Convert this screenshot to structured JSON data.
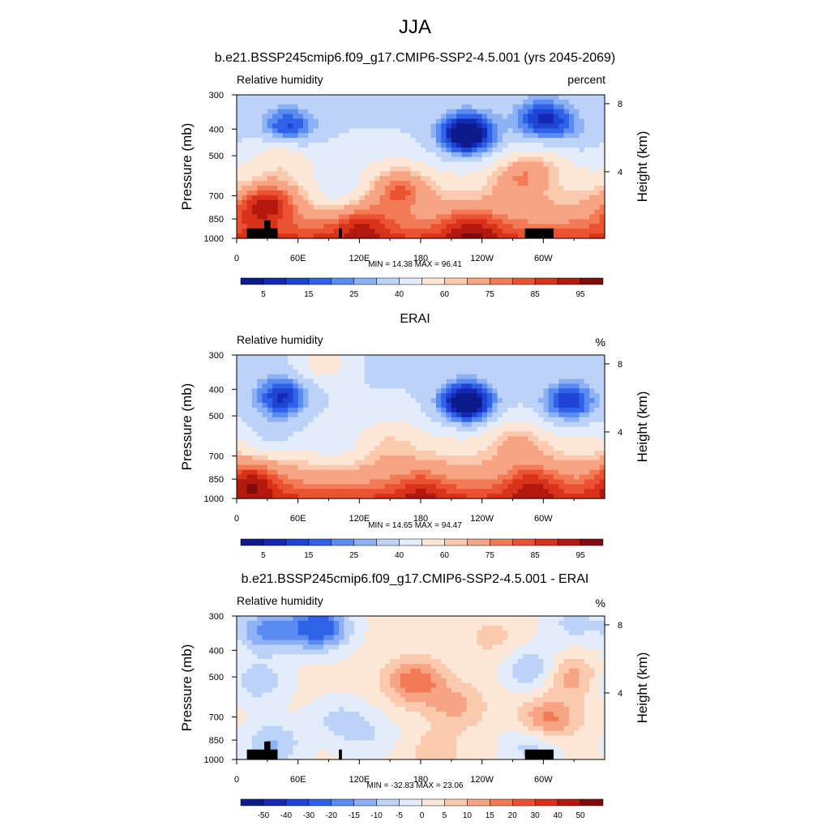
{
  "title": "JJA",
  "chart_data": [
    {
      "type": "heatmap",
      "title": "b.e21.BSSP245cmip6.f09_g17.CMIP6-SSP2-4.5.001 (yrs 2045-2069)",
      "left_string": "Relative humidity",
      "right_string": "percent",
      "ylabel": "Pressure (mb)",
      "ylabel_right": "Height (km)",
      "x_ticks": [
        "0",
        "60E",
        "120E",
        "180",
        "120W",
        "60W"
      ],
      "y_ticks": [
        "300",
        "400",
        "500",
        "700",
        "850",
        "1000"
      ],
      "y_ticks_right": [
        "8",
        "4"
      ],
      "min_max_label": "MIN =  14.38  MAX =  96.41",
      "min": 14.38,
      "max": 96.41,
      "colorbar_labels": [
        "5",
        "15",
        "25",
        "40",
        "60",
        "75",
        "85",
        "95"
      ],
      "topography": true,
      "features": [
        {
          "lon": 100,
          "p": 690,
          "v": -15
        },
        {
          "lon": 160,
          "p": 650,
          "v": 25
        },
        {
          "lon": 45,
          "p": 480,
          "v": 18
        },
        {
          "lon": 330,
          "p": 420,
          "v": -8
        },
        {
          "lon": 50,
          "p": 400,
          "v": -30
        },
        {
          "lon": 225,
          "p": 420,
          "v": -48
        },
        {
          "lon": 300,
          "p": 370,
          "v": -30
        },
        {
          "lon": 300,
          "p": 530,
          "v": 12
        },
        {
          "lon": 35,
          "p": 720,
          "v": 22
        },
        {
          "lon": 275,
          "p": 600,
          "v": 20
        },
        {
          "lon": 120,
          "p": 860,
          "v": 15
        },
        {
          "lon": 230,
          "p": 900,
          "v": 15
        },
        {
          "lon": 15,
          "p": 780,
          "v": 12
        }
      ]
    },
    {
      "type": "heatmap",
      "title": "ERAI",
      "left_string": "Relative humidity",
      "right_string": "%",
      "ylabel": "Pressure (mb)",
      "ylabel_right": "Height (km)",
      "x_ticks": [
        "0",
        "60E",
        "120E",
        "180",
        "120W",
        "60W"
      ],
      "y_ticks": [
        "300",
        "400",
        "500",
        "700",
        "850",
        "1000"
      ],
      "y_ticks_right": [
        "8",
        "4"
      ],
      "min_max_label": "MIN =  14.65  MAX =  94.47",
      "min": 14.65,
      "max": 94.47,
      "colorbar_labels": [
        "5",
        "15",
        "25",
        "40",
        "60",
        "75",
        "85",
        "95"
      ],
      "topography": false,
      "features": [
        {
          "lon": 95,
          "p": 640,
          "v": -12
        },
        {
          "lon": 150,
          "p": 620,
          "v": 8
        },
        {
          "lon": 45,
          "p": 430,
          "v": -32
        },
        {
          "lon": 225,
          "p": 450,
          "v": -48
        },
        {
          "lon": 325,
          "p": 450,
          "v": -32
        },
        {
          "lon": 85,
          "p": 320,
          "v": 18
        },
        {
          "lon": 275,
          "p": 620,
          "v": 15
        },
        {
          "lon": 35,
          "p": 600,
          "v": -15
        },
        {
          "lon": 15,
          "p": 850,
          "v": 20
        },
        {
          "lon": 290,
          "p": 880,
          "v": 15
        },
        {
          "lon": 180,
          "p": 900,
          "v": 10
        }
      ]
    },
    {
      "type": "heatmap",
      "title": "b.e21.BSSP245cmip6.f09_g17.CMIP6-SSP2-4.5.001 - ERAI",
      "left_string": "Relative humidity",
      "right_string": "%",
      "ylabel": "Pressure (mb)",
      "ylabel_right": "Height (km)",
      "x_ticks": [
        "0",
        "60E",
        "120E",
        "180",
        "120W",
        "60W"
      ],
      "y_ticks": [
        "300",
        "400",
        "500",
        "700",
        "850",
        "1000"
      ],
      "y_ticks_right": [
        "8",
        "4"
      ],
      "min_max_label": "MIN = -32.83  MAX =  23.06",
      "min": -32.83,
      "max": 23.06,
      "colorbar_labels": [
        "-50",
        "-40",
        "-30",
        "-20",
        "-15",
        "-10",
        "-5",
        "0",
        "5",
        "10",
        "15",
        "20",
        "30",
        "40",
        "50"
      ],
      "topography": true,
      "features": [
        {
          "lon": 80,
          "p": 330,
          "v": -28
        },
        {
          "lon": 30,
          "p": 340,
          "v": -18
        },
        {
          "lon": 20,
          "p": 520,
          "v": -10
        },
        {
          "lon": 35,
          "p": 880,
          "v": -12
        },
        {
          "lon": 100,
          "p": 720,
          "v": -8
        },
        {
          "lon": 130,
          "p": 820,
          "v": -6
        },
        {
          "lon": 175,
          "p": 520,
          "v": 18
        },
        {
          "lon": 215,
          "p": 640,
          "v": 10
        },
        {
          "lon": 250,
          "p": 360,
          "v": 5
        },
        {
          "lon": 305,
          "p": 720,
          "v": 16
        },
        {
          "lon": 325,
          "p": 500,
          "v": 12
        },
        {
          "lon": 290,
          "p": 470,
          "v": -12
        },
        {
          "lon": 290,
          "p": 880,
          "v": -10
        },
        {
          "lon": 330,
          "p": 320,
          "v": -8
        },
        {
          "lon": 195,
          "p": 930,
          "v": 6
        }
      ]
    }
  ]
}
